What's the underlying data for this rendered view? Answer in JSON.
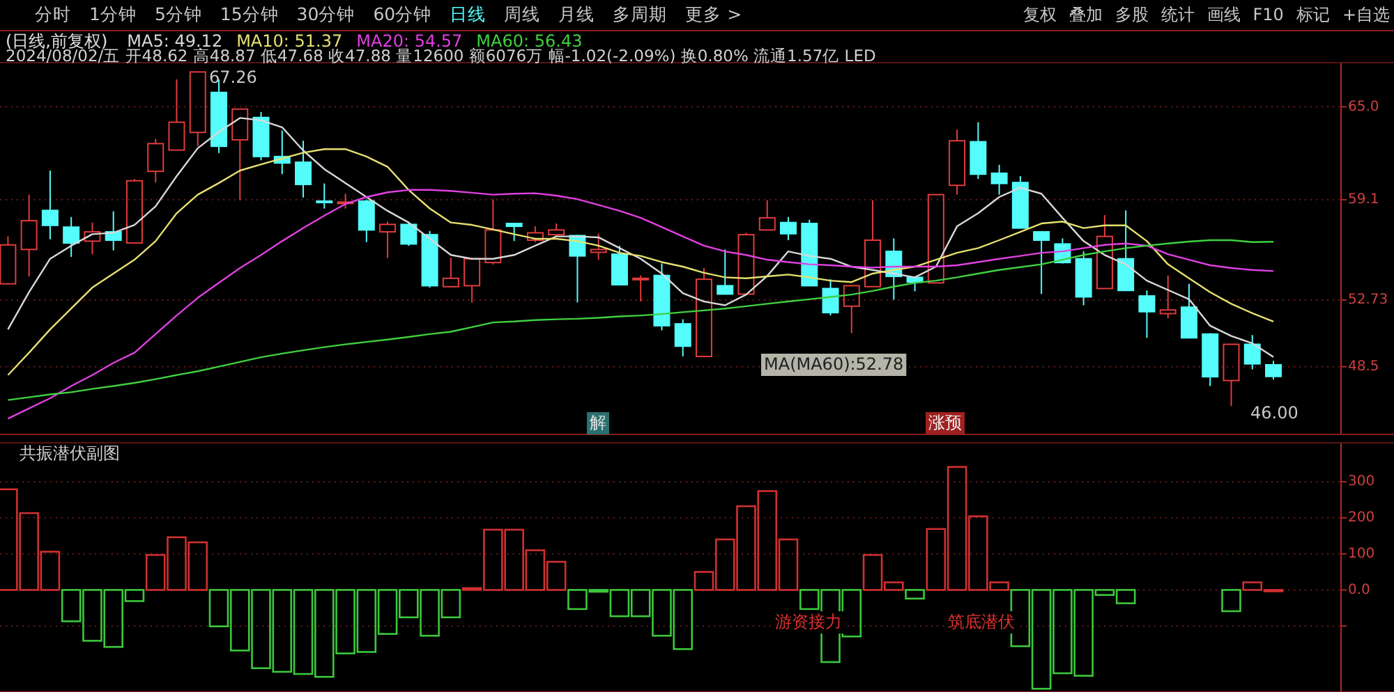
{
  "chart_data": [
    {
      "type": "candlestick",
      "title": "(日线,前复权)",
      "subtitle": "2024/08/02/五 开48.62 高48.87 低47.68 收47.88 量12600 额6076万 幅-1.02(-2.09%) 换0.80% 流通1.57亿 LED",
      "categories": [
        null,
        null,
        null,
        null,
        null,
        null,
        null,
        null,
        null,
        null,
        null,
        null,
        null,
        null,
        null,
        null,
        null,
        null,
        null,
        null,
        null,
        null,
        null,
        null,
        null,
        null,
        null,
        null,
        null,
        null,
        null,
        null,
        null,
        null,
        null,
        null,
        null,
        null,
        null,
        null,
        null,
        null,
        null,
        null,
        null,
        null,
        null,
        null,
        null,
        null,
        null,
        null,
        null,
        null,
        null,
        null,
        null,
        null,
        null,
        null,
        null
      ],
      "ohlc": [
        [
          53.76,
          56.77,
          53.76,
          56.23
        ],
        [
          55.94,
          59.42,
          54.23,
          57.77
        ],
        [
          58.42,
          60.95,
          56.59,
          57.47
        ],
        [
          57.36,
          58.0,
          55.47,
          56.35
        ],
        [
          56.47,
          57.65,
          55.64,
          57.06
        ],
        [
          57.06,
          58.36,
          55.88,
          56.53
        ],
        [
          56.35,
          60.42,
          56.35,
          60.3
        ],
        [
          60.9,
          62.96,
          60.19,
          62.66
        ],
        [
          62.25,
          66.74,
          62.25,
          64.02
        ],
        [
          63.37,
          67.26,
          62.49,
          67.21
        ],
        [
          65.91,
          66.74,
          62.07,
          62.49
        ],
        [
          62.9,
          64.85,
          59.07,
          64.85
        ],
        [
          64.32,
          64.67,
          61.6,
          61.84
        ],
        [
          61.84,
          63.49,
          60.72,
          61.43
        ],
        [
          61.48,
          62.84,
          59.24,
          60.07
        ],
        [
          59.01,
          60.13,
          58.54,
          59.01
        ],
        [
          58.89,
          59.48,
          58.54,
          58.95
        ],
        [
          59.01,
          59.12,
          56.41,
          57.18
        ],
        [
          57.06,
          57.71,
          55.41,
          57.53
        ],
        [
          57.53,
          57.65,
          56.17,
          56.29
        ],
        [
          56.88,
          57.12,
          53.52,
          53.64
        ],
        [
          53.58,
          55.41,
          53.52,
          54.11
        ],
        [
          53.64,
          55.35,
          52.58,
          55.35
        ],
        [
          55.11,
          59.12,
          54.99,
          57.18
        ],
        [
          57.59,
          57.59,
          56.47,
          57.41
        ],
        [
          56.53,
          57.41,
          56.41,
          57.0
        ],
        [
          56.88,
          57.59,
          56.77,
          57.18
        ],
        [
          56.82,
          56.88,
          52.58,
          55.53
        ],
        [
          55.76,
          56.94,
          55.29,
          55.94
        ],
        [
          55.64,
          56.17,
          53.7,
          53.7
        ],
        [
          54.05,
          54.29,
          52.64,
          54.11
        ],
        [
          54.29,
          55.05,
          50.81,
          51.1
        ],
        [
          51.22,
          51.51,
          49.15,
          49.8
        ],
        [
          49.15,
          54.76,
          49.15,
          54.05
        ],
        [
          53.64,
          55.94,
          53.11,
          53.11
        ],
        [
          53.11,
          57.0,
          53.11,
          56.88
        ],
        [
          57.18,
          59.07,
          57.18,
          57.95
        ],
        [
          57.65,
          58.0,
          56.53,
          56.94
        ],
        [
          57.59,
          57.83,
          53.64,
          53.64
        ],
        [
          53.46,
          54.05,
          51.75,
          51.93
        ],
        [
          52.34,
          53.64,
          50.63,
          53.64
        ],
        [
          53.58,
          59.07,
          53.58,
          56.53
        ],
        [
          55.82,
          56.65,
          52.75,
          54.23
        ],
        [
          54.17,
          54.23,
          53.28,
          53.87
        ],
        [
          53.82,
          59.42,
          53.82,
          59.42
        ],
        [
          60.01,
          63.55,
          59.42,
          62.84
        ],
        [
          62.78,
          64.02,
          60.42,
          60.72
        ],
        [
          60.78,
          61.31,
          59.42,
          60.13
        ],
        [
          60.19,
          60.6,
          57.3,
          57.3
        ],
        [
          57.06,
          57.06,
          53.11,
          56.53
        ],
        [
          56.29,
          56.65,
          55.05,
          55.11
        ],
        [
          55.35,
          55.82,
          52.4,
          52.93
        ],
        [
          53.46,
          58.12,
          53.46,
          56.77
        ],
        [
          55.35,
          58.42,
          53.34,
          53.34
        ],
        [
          52.99,
          53.34,
          50.33,
          51.99
        ],
        [
          51.87,
          54.29,
          51.57,
          52.1
        ],
        [
          52.28,
          53.76,
          50.33,
          50.33
        ],
        [
          50.57,
          50.63,
          47.27,
          47.86
        ],
        [
          47.62,
          49.92,
          46.0,
          49.92
        ],
        [
          49.92,
          50.51,
          48.33,
          48.68
        ],
        [
          48.62,
          48.87,
          47.68,
          47.88
        ]
      ],
      "colors": [
        "#e03c3c",
        "#e03c3c",
        "#54fcfc",
        "#54fcfc",
        "#e03c3c",
        "#54fcfc",
        "#e03c3c",
        "#e03c3c",
        "#e03c3c",
        "#e03c3c",
        "#54fcfc",
        "#e03c3c",
        "#54fcfc",
        "#54fcfc",
        "#54fcfc",
        "#54fcfc",
        "#e03c3c",
        "#54fcfc",
        "#e03c3c",
        "#54fcfc",
        "#54fcfc",
        "#e03c3c",
        "#e03c3c",
        "#e03c3c",
        "#54fcfc",
        "#e03c3c",
        "#e03c3c",
        "#54fcfc",
        "#e03c3c",
        "#54fcfc",
        "#e03c3c",
        "#54fcfc",
        "#54fcfc",
        "#e03c3c",
        "#54fcfc",
        "#e03c3c",
        "#e03c3c",
        "#54fcfc",
        "#54fcfc",
        "#54fcfc",
        "#e03c3c",
        "#e03c3c",
        "#54fcfc",
        "#54fcfc",
        "#e03c3c",
        "#e03c3c",
        "#54fcfc",
        "#54fcfc",
        "#54fcfc",
        "#54fcfc",
        "#54fcfc",
        "#54fcfc",
        "#e03c3c",
        "#54fcfc",
        "#54fcfc",
        "#e03c3c",
        "#54fcfc",
        "#54fcfc",
        "#e03c3c",
        "#54fcfc",
        "#54fcfc"
      ],
      "series": [
        {
          "name": "MA5: 49.12",
          "type": "line",
          "color": "#d8d8d8",
          "values": [
            50.87,
            53.23,
            55.35,
            56.18,
            56.91,
            57.0,
            57.5,
            58.68,
            60.6,
            62.37,
            63.4,
            64.29,
            64.14,
            63.7,
            62.22,
            61.04,
            60.16,
            59.27,
            58.39,
            57.65,
            56.62,
            55.59,
            55.35,
            55.35,
            55.59,
            56.18,
            56.77,
            56.77,
            56.71,
            56.03,
            55.35,
            54.41,
            53.17,
            52.64,
            52.4,
            53.08,
            54.26,
            55.82,
            55.53,
            55.35,
            54.85,
            54.64,
            54.41,
            54.17,
            54.85,
            57.41,
            58.24,
            59.27,
            59.86,
            59.48,
            57.95,
            56.47,
            55.59,
            55.0,
            53.96,
            53.37,
            52.78,
            51.1,
            50.45,
            49.98,
            49.12
          ]
        },
        {
          "name": "MA10: 51.37",
          "type": "line",
          "color": "#e6e070",
          "values": [
            47.97,
            49.39,
            50.87,
            52.19,
            53.52,
            54.41,
            55.29,
            56.47,
            58.24,
            59.42,
            60.16,
            60.95,
            61.34,
            61.72,
            62.08,
            62.31,
            62.31,
            61.84,
            61.19,
            59.72,
            58.54,
            57.65,
            57.5,
            57.21,
            56.91,
            56.62,
            56.62,
            56.47,
            56.18,
            55.73,
            55.53,
            55.14,
            54.85,
            54.46,
            54.17,
            54.11,
            54.23,
            54.35,
            54.17,
            53.96,
            53.87,
            54.41,
            54.64,
            54.85,
            55.29,
            55.73,
            56.03,
            56.53,
            57.06,
            57.59,
            57.71,
            57.3,
            57.47,
            57.47,
            56.47,
            55.0,
            54.11,
            53.23,
            52.49,
            51.9,
            51.37
          ]
        },
        {
          "name": "MA20: 54.57",
          "type": "line",
          "color": "#e040e0",
          "values": [
            45.2,
            45.85,
            46.5,
            47.27,
            47.97,
            48.74,
            49.39,
            50.57,
            51.75,
            52.87,
            53.82,
            54.76,
            55.59,
            56.47,
            57.3,
            58.09,
            58.83,
            59.27,
            59.57,
            59.72,
            59.72,
            59.66,
            59.54,
            59.42,
            59.48,
            59.51,
            59.36,
            59.13,
            58.77,
            58.39,
            57.95,
            57.36,
            56.77,
            56.18,
            55.82,
            55.59,
            55.29,
            55.14,
            55.0,
            54.94,
            54.85,
            54.79,
            54.85,
            54.85,
            54.85,
            54.94,
            55.14,
            55.35,
            55.53,
            55.73,
            55.82,
            56.03,
            56.23,
            56.32,
            56.18,
            55.64,
            55.29,
            54.94,
            54.76,
            54.64,
            54.57
          ]
        },
        {
          "name": "MA60: 56.43",
          "type": "line",
          "color": "#40d040",
          "values": [
            46.38,
            46.56,
            46.74,
            46.88,
            47.09,
            47.27,
            47.47,
            47.71,
            47.97,
            48.21,
            48.5,
            48.8,
            49.1,
            49.33,
            49.54,
            49.74,
            49.92,
            50.07,
            50.22,
            50.39,
            50.57,
            50.72,
            51.01,
            51.31,
            51.37,
            51.46,
            51.51,
            51.54,
            51.6,
            51.69,
            51.75,
            51.84,
            51.96,
            52.07,
            52.19,
            52.34,
            52.49,
            52.64,
            52.78,
            52.93,
            53.08,
            53.31,
            53.58,
            53.82,
            53.96,
            54.17,
            54.41,
            54.64,
            54.82,
            55.0,
            55.29,
            55.59,
            55.82,
            56.03,
            56.18,
            56.32,
            56.44,
            56.53,
            56.53,
            56.41,
            56.43
          ]
        }
      ],
      "ylim": [
        44.2,
        67.8
      ],
      "yticks": [
        {
          "value": 48.5,
          "label": "48.5"
        },
        52.73,
        {
          "value": 59.1,
          "label": "59.1"
        },
        {
          "value": 65,
          "label": "65.0"
        }
      ],
      "grid": "y",
      "legend": "top left",
      "annotations": [
        "分时",
        "1分钟",
        "5分钟",
        "15分钟",
        "30分钟",
        "60分钟",
        "日线",
        "周线",
        "月线",
        "多周期",
        "更多 >",
        "复权",
        "叠加",
        "多股",
        "统计",
        "画线",
        "F10",
        "标记",
        "+自选",
        "67.26",
        "46.00",
        "MA(MA60):52.78",
        "解",
        "涨预"
      ]
    },
    {
      "type": "bar",
      "title": "共振潜伏副图",
      "categories": [
        null,
        null,
        null,
        null,
        null,
        null,
        null,
        null,
        null,
        null,
        null,
        null,
        null,
        null,
        null,
        null,
        null,
        null,
        null,
        null,
        null,
        null,
        null,
        null,
        null,
        null,
        null,
        null,
        null,
        null,
        null,
        null,
        null,
        null,
        null,
        null,
        null,
        null,
        null,
        null,
        null,
        null,
        null,
        null,
        null,
        null,
        null,
        null,
        null,
        null,
        null,
        null,
        null,
        null,
        null,
        null,
        null,
        null,
        null,
        null,
        null
      ],
      "values": [
        279,
        213,
        106,
        -87,
        -141,
        -158,
        -31,
        97,
        146,
        132,
        -101,
        -168,
        -217,
        -227,
        -233,
        -241,
        -176,
        -172,
        -122,
        -76,
        -127,
        -76,
        5,
        167,
        167,
        110,
        78,
        -53,
        -5,
        -73,
        -73,
        -127,
        -164,
        50,
        140,
        232,
        274,
        140,
        -53,
        -200,
        -129,
        97,
        21,
        -24,
        169,
        341,
        204,
        21,
        -156,
        -274,
        -231,
        -238,
        -14,
        -37,
        null,
        null,
        null,
        null,
        -59,
        21,
        0
      ],
      "colors": [
        "#d03030",
        "#d03030",
        "#d03030",
        "#3cc83c",
        "#3cc83c",
        "#3cc83c",
        "#3cc83c",
        "#d03030",
        "#d03030",
        "#d03030",
        "#3cc83c",
        "#3cc83c",
        "#3cc83c",
        "#3cc83c",
        "#3cc83c",
        "#3cc83c",
        "#3cc83c",
        "#3cc83c",
        "#3cc83c",
        "#3cc83c",
        "#3cc83c",
        "#3cc83c",
        "#d03030",
        "#d03030",
        "#d03030",
        "#d03030",
        "#d03030",
        "#3cc83c",
        "#3cc83c",
        "#3cc83c",
        "#3cc83c",
        "#3cc83c",
        "#3cc83c",
        "#d03030",
        "#d03030",
        "#d03030",
        "#d03030",
        "#d03030",
        "#3cc83c",
        "#3cc83c",
        "#3cc83c",
        "#d03030",
        "#d03030",
        "#3cc83c",
        "#d03030",
        "#d03030",
        "#d03030",
        "#d03030",
        "#3cc83c",
        "#3cc83c",
        "#3cc83c",
        "#3cc83c",
        "#3cc83c",
        "#3cc83c",
        null,
        null,
        null,
        null,
        "#3cc83c",
        "#d03030",
        "#d03030"
      ],
      "ylim": [
        -283,
        408
      ],
      "yticks": [
        {
          "value": -100,
          "label": null
        },
        {
          "value": 0,
          "label": "0.0"
        },
        100,
        200,
        300
      ],
      "grid": "y",
      "annotations": [
        "游资接力",
        "筑底潜伏"
      ]
    }
  ]
}
